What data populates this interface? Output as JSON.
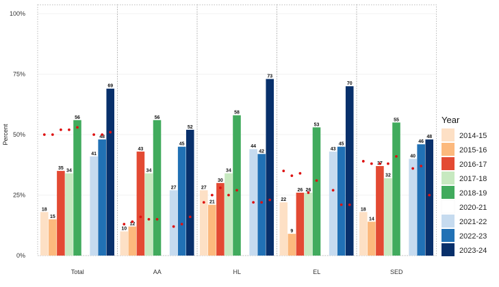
{
  "chart_data": {
    "type": "bar",
    "ylabel": "Percent",
    "ylim": [
      0,
      100
    ],
    "y_ticks": [
      {
        "value": 0,
        "label": "0%"
      },
      {
        "value": 25,
        "label": "25%"
      },
      {
        "value": 50,
        "label": "50%"
      },
      {
        "value": 75,
        "label": "75%"
      },
      {
        "value": 100,
        "label": "100%"
      }
    ],
    "categories": [
      "Total",
      "AA",
      "HL",
      "EL",
      "SED"
    ],
    "legend": {
      "title": "Year",
      "position": "right",
      "entries": [
        {
          "name": "2014-15",
          "color": "#fde0c5"
        },
        {
          "name": "2015-16",
          "color": "#fcb97d"
        },
        {
          "name": "2016-17",
          "color": "#e34a33"
        },
        {
          "name": "2017-18",
          "color": "#c7e9c0"
        },
        {
          "name": "2018-19",
          "color": "#41ab5d"
        },
        {
          "name": "2020-21",
          "color": "#ffffff"
        },
        {
          "name": "2021-22",
          "color": "#c6dbef"
        },
        {
          "name": "2022-23",
          "color": "#2171b5"
        },
        {
          "name": "2023-24",
          "color": "#08306b"
        }
      ]
    },
    "series": [
      {
        "name": "2014-15",
        "values": [
          18,
          10,
          27,
          22,
          18
        ]
      },
      {
        "name": "2015-16",
        "values": [
          15,
          12,
          21,
          9,
          14
        ]
      },
      {
        "name": "2016-17",
        "values": [
          35,
          43,
          30,
          26,
          37
        ]
      },
      {
        "name": "2017-18",
        "values": [
          34,
          34,
          34,
          26,
          32
        ]
      },
      {
        "name": "2018-19",
        "values": [
          56,
          56,
          58,
          53,
          55
        ]
      },
      {
        "name": "2020-21",
        "values": [
          null,
          null,
          null,
          null,
          null
        ]
      },
      {
        "name": "2021-22",
        "values": [
          41,
          27,
          44,
          43,
          40
        ]
      },
      {
        "name": "2022-23",
        "values": [
          48,
          45,
          42,
          45,
          46
        ]
      },
      {
        "name": "2023-24",
        "values": [
          69,
          52,
          73,
          70,
          48
        ]
      }
    ],
    "comparison_points": {
      "color": "#dd1111",
      "values": [
        [
          50,
          50,
          52,
          52,
          53,
          null,
          50,
          50,
          51
        ],
        [
          13,
          14,
          16,
          15,
          15,
          null,
          12,
          13,
          16
        ],
        [
          22,
          25,
          28,
          25,
          27,
          null,
          22,
          22,
          23
        ],
        [
          35,
          33,
          34,
          26,
          31,
          null,
          27,
          21,
          21
        ],
        [
          39,
          38,
          38,
          38,
          41,
          null,
          36,
          37,
          25
        ]
      ]
    }
  }
}
